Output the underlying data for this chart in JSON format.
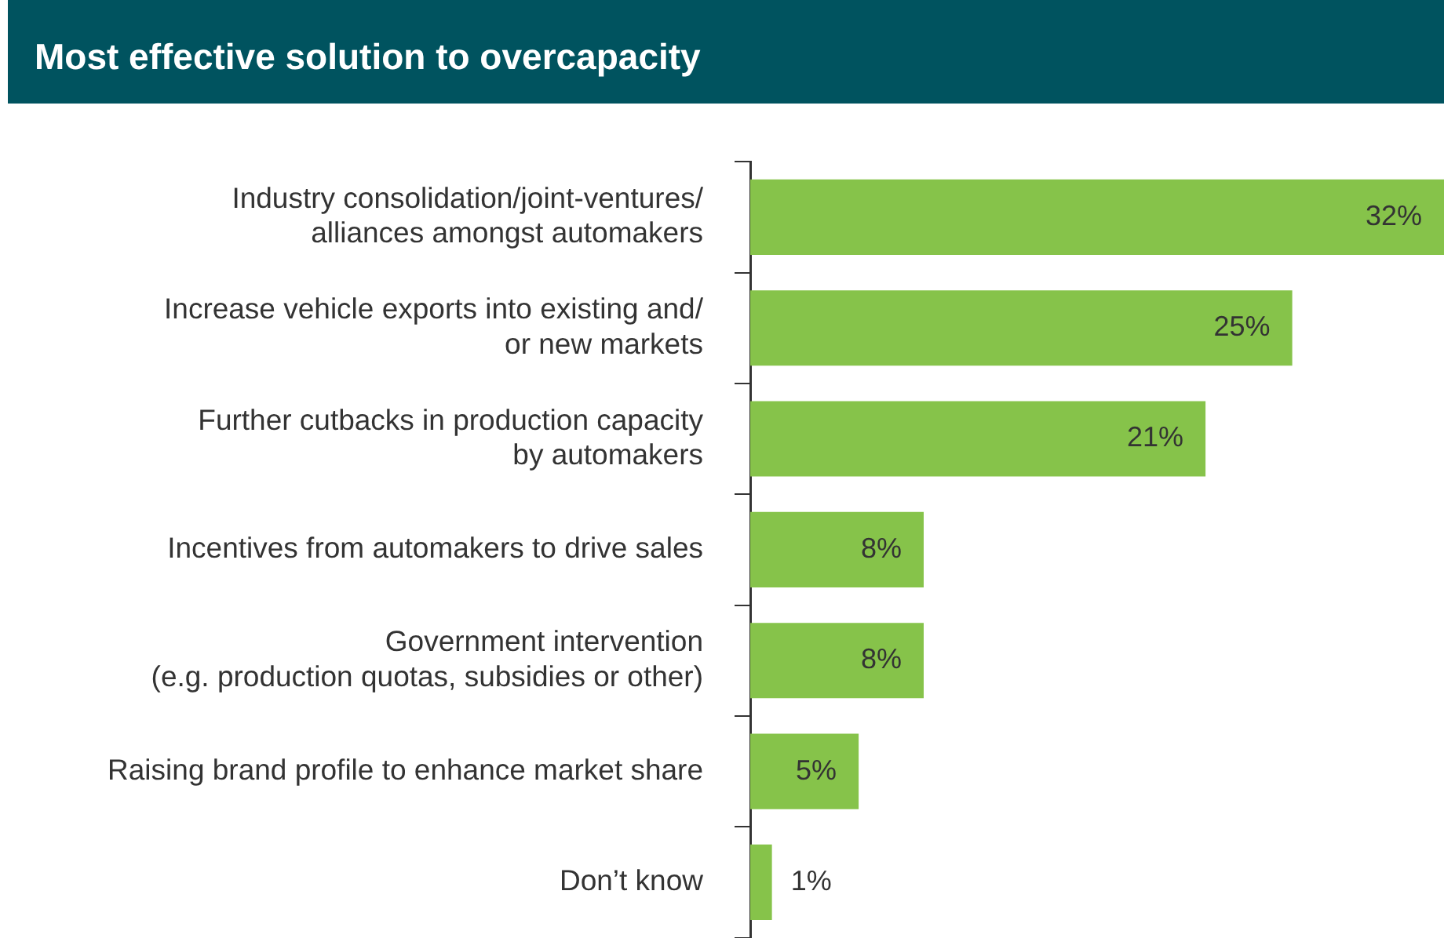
{
  "chart_data": {
    "type": "bar",
    "orientation": "horizontal",
    "title": "Most effective solution to overcapacity",
    "categories": [
      "Industry consolidation/joint-ventures/\nalliances amongst automakers",
      "Increase vehicle exports into existing and/\nor new markets",
      "Further cutbacks in production capacity\nby automakers",
      "Incentives from automakers to drive sales",
      "Government intervention\n(e.g. production quotas, subsidies or other)",
      "Raising brand profile to enhance market share",
      "Don’t know"
    ],
    "values": [
      32,
      25,
      21,
      8,
      8,
      5,
      1
    ],
    "value_labels": [
      "32%",
      "25%",
      "21%",
      "8%",
      "8%",
      "5%",
      "1%"
    ],
    "color": "#86c34a",
    "xlim": [
      0,
      32
    ],
    "tick_labels": "y",
    "grid": false,
    "legend": false
  }
}
